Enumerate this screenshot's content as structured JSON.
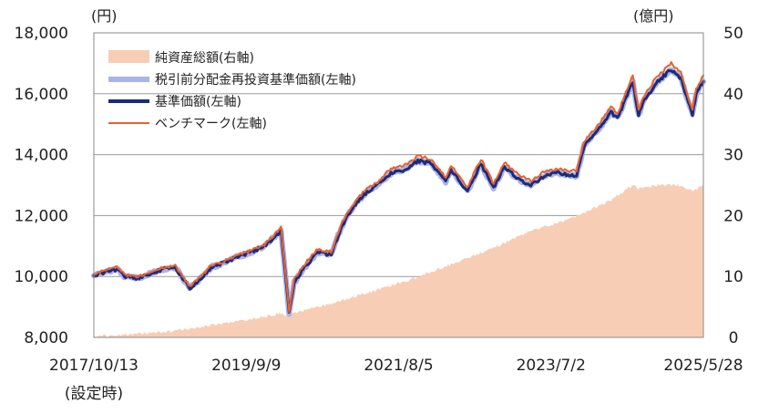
{
  "chart_data": {
    "type": "line",
    "left_unit": "(円)",
    "right_unit": "(億円)",
    "left_axis": {
      "min": 8000,
      "max": 18000,
      "ticks": [
        8000,
        10000,
        12000,
        14000,
        16000,
        18000
      ],
      "tick_labels": [
        "8,000",
        "10,000",
        "12,000",
        "14,000",
        "16,000",
        "18,000"
      ]
    },
    "right_axis": {
      "min": 0,
      "max": 50,
      "ticks": [
        0,
        10,
        20,
        30,
        40,
        50
      ],
      "tick_labels": [
        "0",
        "10",
        "20",
        "30",
        "40",
        "50"
      ]
    },
    "x_axis": {
      "start": "2017/10/13",
      "end": "2025/5/28",
      "ticks": [
        {
          "date": "2017/10/13",
          "label": "2017/10/13",
          "sublabel": "(設定時)"
        },
        {
          "date": "2019/9/9",
          "label": "2019/9/9"
        },
        {
          "date": "2021/8/5",
          "label": "2021/8/5"
        },
        {
          "date": "2023/7/2",
          "label": "2023/7/2"
        },
        {
          "date": "2025/5/28",
          "label": "2025/5/28"
        }
      ]
    },
    "grid": "horizontal",
    "legend": {
      "placement": "top-left",
      "entries": [
        {
          "label": "純資産総額(右軸)",
          "kind": "area",
          "color": "#f8cdb5"
        },
        {
          "label": "税引前分配金再投資基準価額(左軸)",
          "kind": "line",
          "color": "#aab4e6"
        },
        {
          "label": "基準価額(左軸)",
          "kind": "line",
          "color": "#1e2a7a"
        },
        {
          "label": "ベンチマーク(左軸)",
          "kind": "line",
          "color": "#e8622c"
        }
      ]
    },
    "series": [
      {
        "name": "純資産総額(右軸)",
        "axis": "right",
        "kind": "area",
        "color": "#f8cdb5",
        "x": [
          "2017/10/13",
          "2018/4/1",
          "2018/10/1",
          "2019/4/1",
          "2019/10/1",
          "2020/2/15",
          "2020/3/20",
          "2020/6/1",
          "2020/10/1",
          "2021/4/1",
          "2021/10/1",
          "2022/4/1",
          "2022/10/1",
          "2023/4/1",
          "2023/10/1",
          "2024/4/1",
          "2024/7/10",
          "2024/8/5",
          "2024/11/1",
          "2025/2/1",
          "2025/4/8",
          "2025/5/28"
        ],
        "y": [
          0.2,
          0.5,
          1.0,
          2.0,
          3.0,
          4.0,
          3.5,
          4.5,
          5.5,
          7.5,
          9.5,
          12,
          14.5,
          17.5,
          19.5,
          22.5,
          25,
          24.5,
          25,
          25,
          24,
          25
        ]
      },
      {
        "name": "税引前分配金再投資基準価額(左軸)",
        "axis": "left",
        "kind": "line",
        "color": "#aab4e6",
        "width": 6,
        "x": [
          "2017/10/13",
          "2017/12/1",
          "2018/2/1",
          "2018/3/1",
          "2018/5/1",
          "2018/7/1",
          "2018/9/1",
          "2018/10/20",
          "2018/12/25",
          "2019/2/1",
          "2019/4/1",
          "2019/6/1",
          "2019/8/1",
          "2019/10/1",
          "2019/12/1",
          "2020/2/15",
          "2020/3/23",
          "2020/4/15",
          "2020/6/1",
          "2020/8/1",
          "2020/10/1",
          "2020/11/15",
          "2021/1/1",
          "2021/3/1",
          "2021/5/1",
          "2021/7/1",
          "2021/9/1",
          "2021/11/1",
          "2022/1/5",
          "2022/3/8",
          "2022/4/1",
          "2022/6/16",
          "2022/8/16",
          "2022/10/13",
          "2022/12/1",
          "2023/2/1",
          "2023/4/1",
          "2023/6/1",
          "2023/8/1",
          "2023/10/27",
          "2023/12/1",
          "2024/2/1",
          "2024/4/1",
          "2024/5/1",
          "2024/7/10",
          "2024/8/5",
          "2024/9/1",
          "2024/11/1",
          "2025/1/1",
          "2025/2/15",
          "2025/4/8",
          "2025/4/25",
          "2025/5/28"
        ],
        "y": [
          10000,
          10150,
          10250,
          10000,
          9950,
          10100,
          10250,
          10300,
          9600,
          9850,
          10300,
          10450,
          10650,
          10800,
          11000,
          11500,
          8800,
          9800,
          10300,
          10800,
          10700,
          11600,
          12200,
          12700,
          13000,
          13400,
          13500,
          13800,
          13700,
          13100,
          13500,
          12800,
          13700,
          12900,
          13600,
          13200,
          13000,
          13300,
          13400,
          13300,
          14300,
          14800,
          15400,
          15200,
          16400,
          15300,
          15800,
          16400,
          16800,
          16500,
          15300,
          16000,
          16400
        ]
      },
      {
        "name": "基準価額(左軸)",
        "axis": "left",
        "kind": "line",
        "color": "#1e2a7a",
        "width": 3,
        "x": [
          "2017/10/13",
          "2017/12/1",
          "2018/2/1",
          "2018/3/1",
          "2018/5/1",
          "2018/7/1",
          "2018/9/1",
          "2018/10/20",
          "2018/12/25",
          "2019/2/1",
          "2019/4/1",
          "2019/6/1",
          "2019/8/1",
          "2019/10/1",
          "2019/12/1",
          "2020/2/15",
          "2020/3/23",
          "2020/4/15",
          "2020/6/1",
          "2020/8/1",
          "2020/10/1",
          "2020/11/15",
          "2021/1/1",
          "2021/3/1",
          "2021/5/1",
          "2021/7/1",
          "2021/9/1",
          "2021/11/1",
          "2022/1/5",
          "2022/3/8",
          "2022/4/1",
          "2022/6/16",
          "2022/8/16",
          "2022/10/13",
          "2022/12/1",
          "2023/2/1",
          "2023/4/1",
          "2023/6/1",
          "2023/8/1",
          "2023/10/27",
          "2023/12/1",
          "2024/2/1",
          "2024/4/1",
          "2024/5/1",
          "2024/7/10",
          "2024/8/5",
          "2024/9/1",
          "2024/11/1",
          "2025/1/1",
          "2025/2/15",
          "2025/4/8",
          "2025/4/25",
          "2025/5/28"
        ],
        "y": [
          10000,
          10150,
          10250,
          10000,
          9950,
          10100,
          10250,
          10300,
          9600,
          9850,
          10300,
          10450,
          10650,
          10800,
          11000,
          11500,
          8800,
          9800,
          10300,
          10800,
          10700,
          11600,
          12200,
          12700,
          13000,
          13400,
          13500,
          13800,
          13700,
          13100,
          13500,
          12800,
          13700,
          12900,
          13600,
          13200,
          13000,
          13300,
          13400,
          13300,
          14300,
          14800,
          15400,
          15200,
          16400,
          15300,
          15800,
          16400,
          16800,
          16500,
          15300,
          16000,
          16400
        ]
      },
      {
        "name": "ベンチマーク(左軸)",
        "axis": "left",
        "kind": "line",
        "color": "#e8622c",
        "width": 2,
        "x": [
          "2017/10/13",
          "2017/12/1",
          "2018/2/1",
          "2018/3/1",
          "2018/5/1",
          "2018/7/1",
          "2018/9/1",
          "2018/10/20",
          "2018/12/25",
          "2019/2/1",
          "2019/4/1",
          "2019/6/1",
          "2019/8/1",
          "2019/10/1",
          "2019/12/1",
          "2020/2/15",
          "2020/3/23",
          "2020/4/15",
          "2020/6/1",
          "2020/8/1",
          "2020/10/1",
          "2020/11/15",
          "2021/1/1",
          "2021/3/1",
          "2021/5/1",
          "2021/7/1",
          "2021/9/1",
          "2021/11/1",
          "2022/1/5",
          "2022/3/8",
          "2022/4/1",
          "2022/6/16",
          "2022/8/16",
          "2022/10/13",
          "2022/12/1",
          "2023/2/1",
          "2023/4/1",
          "2023/6/1",
          "2023/8/1",
          "2023/10/27",
          "2023/12/1",
          "2024/2/1",
          "2024/4/1",
          "2024/5/1",
          "2024/7/10",
          "2024/8/5",
          "2024/9/1",
          "2024/11/1",
          "2025/1/1",
          "2025/2/15",
          "2025/4/8",
          "2025/4/25",
          "2025/5/28"
        ],
        "y": [
          10050,
          10200,
          10300,
          10050,
          10000,
          10150,
          10300,
          10350,
          9650,
          9900,
          10350,
          10500,
          10700,
          10850,
          11050,
          11600,
          8850,
          9900,
          10400,
          10900,
          10800,
          11700,
          12300,
          12800,
          13100,
          13550,
          13650,
          13950,
          13850,
          13250,
          13650,
          12950,
          13850,
          13050,
          13750,
          13350,
          13150,
          13450,
          13550,
          13450,
          14450,
          14950,
          15550,
          15350,
          16600,
          15450,
          15950,
          16600,
          17000,
          16700,
          15450,
          16150,
          16600
        ]
      }
    ]
  }
}
